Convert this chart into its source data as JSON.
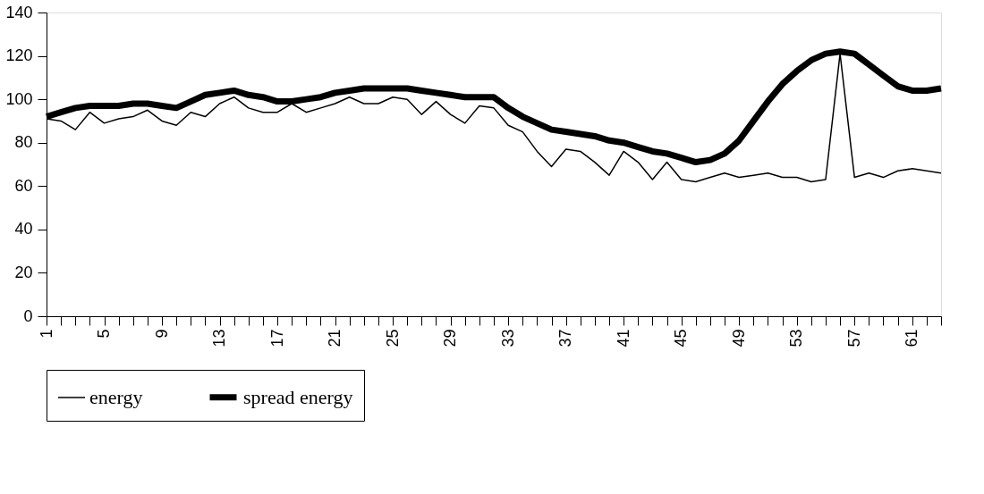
{
  "chart_data": {
    "type": "line",
    "categories": [
      "1",
      null,
      null,
      null,
      "5",
      null,
      null,
      null,
      "9",
      null,
      null,
      null,
      "13",
      null,
      null,
      null,
      "17",
      null,
      null,
      null,
      "21",
      null,
      null,
      null,
      "25",
      null,
      null,
      null,
      "29",
      null,
      null,
      null,
      "33",
      null,
      null,
      null,
      "37",
      null,
      null,
      null,
      "41",
      null,
      null,
      null,
      "45",
      null,
      null,
      null,
      "49",
      null,
      null,
      null,
      "53",
      null,
      null,
      null,
      "57",
      null,
      null,
      null,
      "61",
      null,
      null
    ],
    "series": [
      {
        "name": "energy",
        "color": "#000000",
        "values": [
          91,
          90,
          86,
          94,
          89,
          91,
          92,
          95,
          90,
          88,
          94,
          92,
          98,
          101,
          96,
          94,
          94,
          98,
          94,
          96,
          98,
          101,
          98,
          98,
          101,
          100,
          93,
          99,
          93,
          89,
          97,
          96,
          88,
          85,
          76,
          69,
          77,
          76,
          71,
          65,
          76,
          71,
          63,
          71,
          63,
          62,
          64,
          66,
          64,
          65,
          66,
          64,
          64,
          62,
          63,
          121,
          64,
          66,
          64,
          67,
          68,
          67,
          66
        ]
      },
      {
        "name": "spread energy",
        "color": "#000000",
        "values": [
          92,
          94,
          96,
          97,
          97,
          97,
          98,
          98,
          97,
          96,
          99,
          102,
          103,
          104,
          102,
          101,
          99,
          99,
          100,
          101,
          103,
          104,
          105,
          105,
          105,
          105,
          104,
          103,
          102,
          101,
          101,
          101,
          96,
          92,
          89,
          86,
          85,
          84,
          83,
          81,
          80,
          78,
          76,
          75,
          73,
          71,
          72,
          75,
          81,
          90,
          99,
          107,
          113,
          118,
          121,
          122,
          121,
          116,
          111,
          106,
          104,
          104,
          105
        ]
      }
    ],
    "ylim": [
      0,
      140
    ],
    "yticks": [
      0,
      20,
      40,
      60,
      80,
      100,
      120,
      140
    ],
    "grid": false,
    "legend": "bottom",
    "marker": "none",
    "line_style": "solid"
  }
}
